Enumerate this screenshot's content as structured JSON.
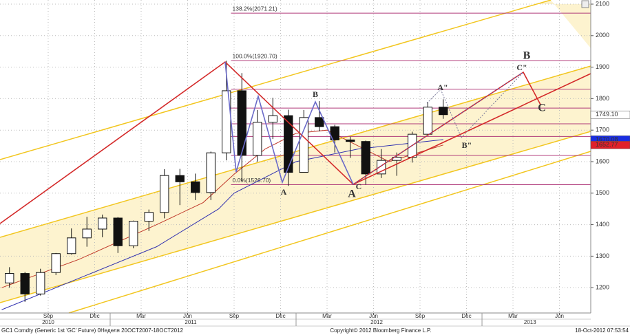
{
  "chart_data": {
    "type": "candlestick",
    "x": [
      5.5,
      6.5,
      7.5,
      8.5,
      9.5,
      10.5,
      11.5,
      12.5,
      13.5,
      14.5,
      15.5,
      16.5,
      17.5,
      18.5,
      19.5,
      20.5,
      21.5,
      22.5,
      23.5,
      24.5,
      25.5,
      26.5,
      27.5,
      28.5,
      29.5,
      30.5,
      31.5,
      32.5,
      33.5
    ],
    "open": [
      1215,
      1245,
      1180,
      1248,
      1308,
      1358,
      1386,
      1421,
      1333,
      1411,
      1439,
      1556,
      1536,
      1502,
      1628,
      1825,
      1620,
      1725,
      1746,
      1566,
      1740,
      1711,
      1669,
      1664,
      1561,
      1604,
      1614,
      1687,
      1773
    ],
    "high": [
      1265,
      1250,
      1260,
      1310,
      1388,
      1425,
      1432,
      1424,
      1413,
      1448,
      1576,
      1577,
      1562,
      1632,
      1920,
      1881,
      1764,
      1803,
      1765,
      1764,
      1792,
      1717,
      1679,
      1667,
      1640,
      1629,
      1695,
      1790,
      1798
    ],
    "low": [
      1200,
      1155,
      1175,
      1240,
      1305,
      1330,
      1360,
      1310,
      1325,
      1380,
      1420,
      1462,
      1478,
      1478,
      1604,
      1535,
      1600,
      1672,
      1523,
      1565,
      1696,
      1629,
      1612,
      1527,
      1548,
      1555,
      1597,
      1685,
      1736
    ],
    "close": [
      1245,
      1180,
      1248,
      1308,
      1358,
      1386,
      1421,
      1333,
      1411,
      1439,
      1556,
      1536,
      1502,
      1628,
      1825,
      1620,
      1725,
      1746,
      1566,
      1740,
      1711,
      1669,
      1664,
      1561,
      1604,
      1614,
      1687,
      1773,
      1749.1
    ],
    "up_color": "#ffffff",
    "down_color": "#111111",
    "ma_lines": [
      {
        "color": "#c0392b",
        "x": [
          5,
          10,
          15,
          18,
          20,
          22,
          24,
          26,
          28,
          30,
          33.5
        ],
        "values": [
          1200,
          1290,
          1400,
          1470,
          1560,
          1640,
          1690,
          1700,
          1650,
          1600,
          1652.77
        ]
      },
      {
        "color": "#3030b0",
        "x": [
          5,
          10,
          15,
          19,
          20,
          24,
          28,
          33.5
        ],
        "values": [
          1130,
          1230,
          1330,
          1450,
          1500,
          1600,
          1640,
          1670.08
        ]
      }
    ],
    "level_start": 19.8,
    "level_color": "#b03a7a",
    "levels": [
      {
        "value": 2071.21,
        "label": "138.2%(2071.21)"
      },
      {
        "value": 1920.7,
        "label": "100.0%(1920.70)"
      },
      {
        "value": 1830
      },
      {
        "value": 1770
      },
      {
        "value": 1720
      },
      {
        "value": 1680
      },
      {
        "value": 1620
      },
      {
        "value": 1526.7,
        "label": "0.0%(1526.70)"
      }
    ],
    "price_tags": [
      {
        "value": 1749.1,
        "label": "1749.10",
        "color": "#ffffff",
        "text_color": "#000000"
      },
      {
        "value": 1670.08,
        "label": "1670.08",
        "color": "#1a2ee0",
        "text_color": "#ffffff"
      },
      {
        "value": 1652.77,
        "label": "1652.77",
        "color": "#e0202a",
        "text_color": "#ffffff"
      }
    ],
    "wave_labels": [
      {
        "text": "A",
        "color": "#5a5ab8"
      },
      {
        "text": "B",
        "color": "#5a5ab8"
      },
      {
        "text": "A",
        "color": "#e0101a"
      },
      {
        "text": "C",
        "color": "#5a5ab8"
      },
      {
        "text": "A\"",
        "color": "#5a5ab8"
      },
      {
        "text": "B\"",
        "color": "#5a5ab8"
      },
      {
        "text": "C\"",
        "color": "#5a5ab8"
      },
      {
        "text": "B",
        "color": "#e0101a"
      },
      {
        "text": "C",
        "color": "#e0101a"
      }
    ],
    "xlim": [
      4.89,
      43.02
    ],
    "ylim": [
      1119.6,
      2113.1
    ],
    "xticks": [
      {
        "value": 8,
        "label": "Sep"
      },
      {
        "value": 11,
        "label": "Dec"
      },
      {
        "value": 14,
        "label": "Mar"
      },
      {
        "value": 17,
        "label": "Jun"
      },
      {
        "value": 20,
        "label": "Sep"
      },
      {
        "value": 23,
        "label": "Dec"
      },
      {
        "value": 26,
        "label": "Mar"
      },
      {
        "value": 29,
        "label": "Jun"
      },
      {
        "value": 32,
        "label": "Sep"
      },
      {
        "value": 35,
        "label": "Dec"
      },
      {
        "value": 38,
        "label": "Mar"
      },
      {
        "value": 41,
        "label": "Jun"
      }
    ],
    "year_labels": [
      {
        "value": 8,
        "label": "2010"
      },
      {
        "value": 17.2,
        "label": "2011"
      },
      {
        "value": 29.2,
        "label": "2012"
      },
      {
        "value": 39.1,
        "label": "2013"
      }
    ],
    "year_starts": [
      12,
      24,
      36
    ],
    "yticks": [
      1200,
      1300,
      1400,
      1500,
      1600,
      1700,
      1800,
      1900,
      2000,
      2100
    ],
    "grid": true
  },
  "footer": {
    "left": "GC1 Comdty (Generic 1st 'GC' Future) 0Неделя 20OCT2007-18OCT2012",
    "center": "Copyright© 2012 Bloomberg Finance L.P.",
    "right": "18-Oct-2012 07:53:54"
  }
}
